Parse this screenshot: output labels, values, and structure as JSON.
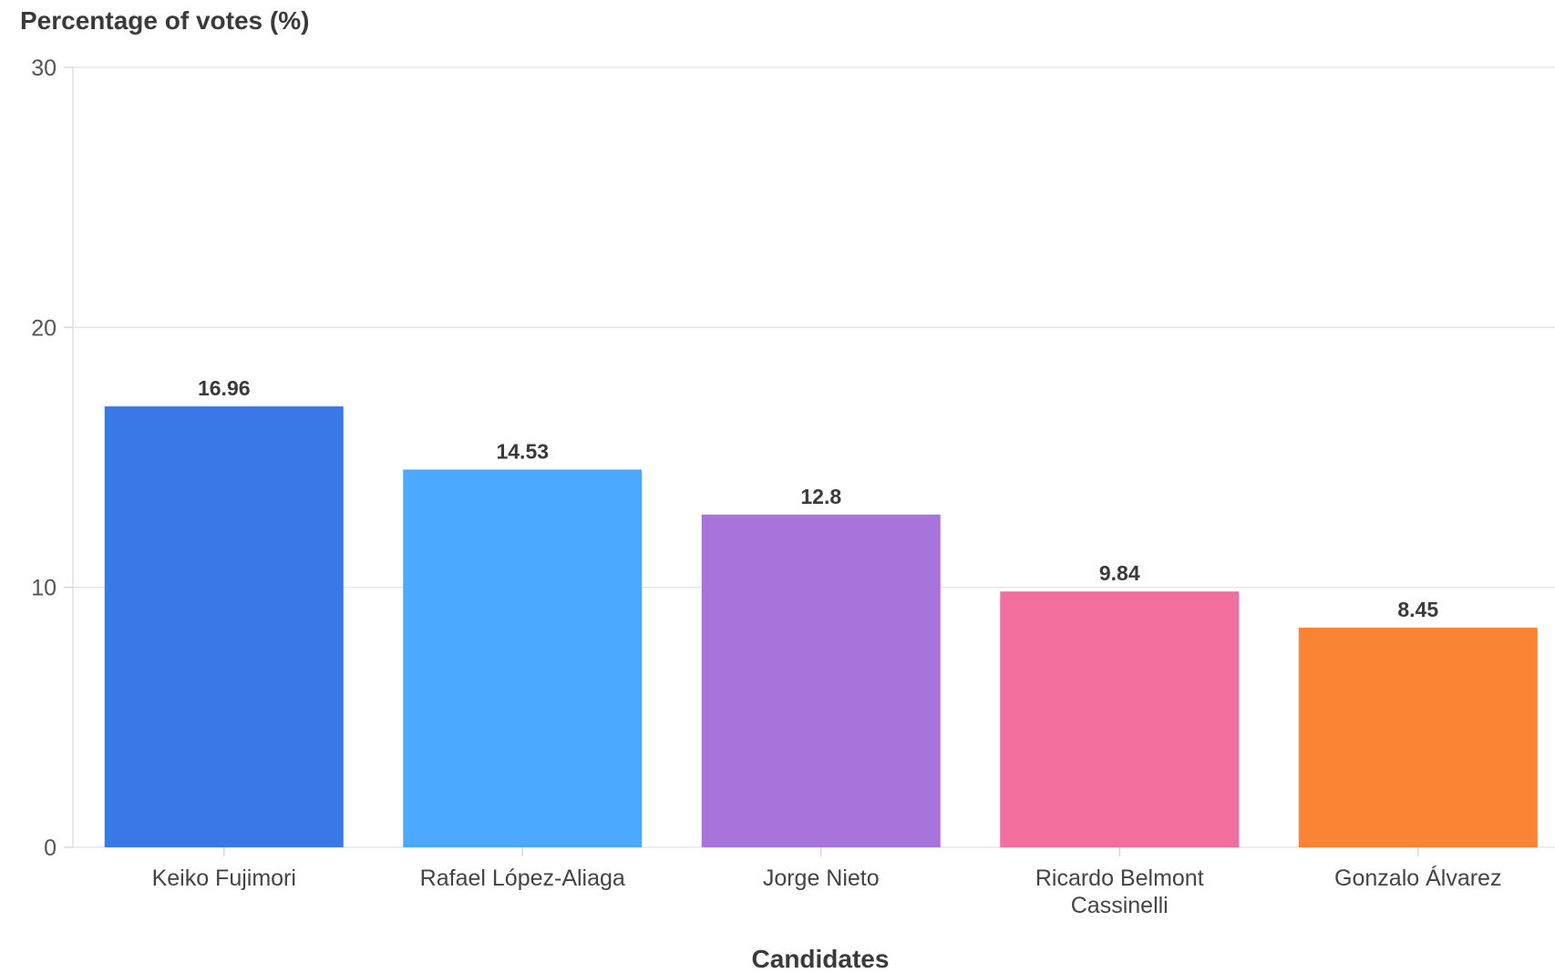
{
  "chart_data": {
    "type": "bar",
    "ylabel": "Percentage of votes (%)",
    "xlabel": "Candidates",
    "ylim": [
      0,
      30
    ],
    "yticks": [
      0,
      10,
      20,
      30
    ],
    "grid": true,
    "categories": [
      "Keiko Fujimori",
      "Rafael López-Aliaga",
      "Jorge Nieto",
      "Ricardo Belmont Cassinelli",
      "Gonzalo Álvarez"
    ],
    "category_lines": [
      [
        "Keiko Fujimori"
      ],
      [
        "Rafael López-Aliaga"
      ],
      [
        "Jorge Nieto"
      ],
      [
        "Ricardo Belmont",
        "Cassinelli"
      ],
      [
        "Gonzalo Álvarez"
      ]
    ],
    "values": [
      16.96,
      14.53,
      12.8,
      9.84,
      8.45
    ],
    "value_labels": [
      "16.96",
      "14.53",
      "12.8",
      "9.84",
      "8.45"
    ],
    "colors": [
      "#3b78e7",
      "#4ba9ff",
      "#a874db",
      "#f26e9f",
      "#fb8334"
    ]
  }
}
